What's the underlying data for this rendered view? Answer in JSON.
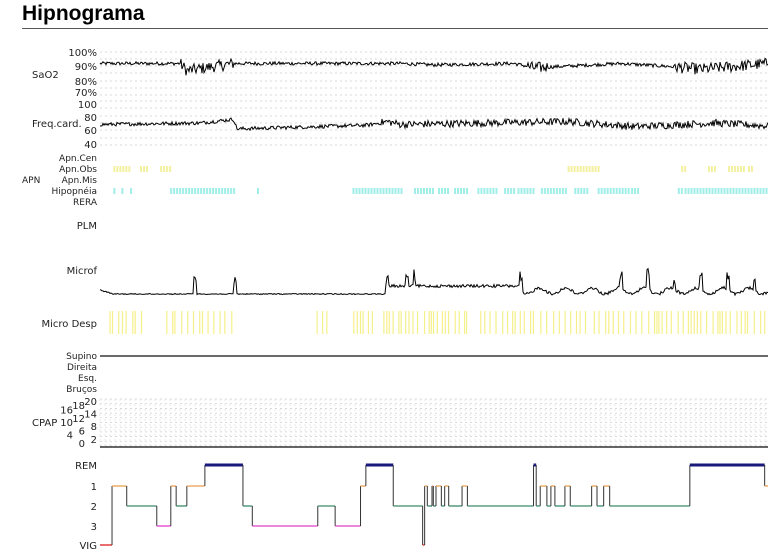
{
  "title": "Hipnograma",
  "channels": {
    "sao2": {
      "label": "SaO2",
      "ticks": [
        "100%",
        "90%",
        "80%",
        "70%"
      ],
      "range": [
        70,
        100
      ],
      "baseline": [
        [
          0,
          92
        ],
        [
          12,
          92
        ],
        [
          13,
          87
        ],
        [
          20,
          92
        ],
        [
          45,
          92
        ],
        [
          50,
          91
        ],
        [
          62,
          92
        ],
        [
          65,
          89
        ],
        [
          78,
          92
        ],
        [
          85,
          90
        ],
        [
          90,
          88
        ],
        [
          100,
          92
        ]
      ]
    },
    "hr": {
      "label": "Freq.card.",
      "ticks": [
        "100",
        "80",
        "60",
        "40"
      ],
      "range": [
        40,
        100
      ],
      "baseline": [
        [
          0,
          68
        ],
        [
          15,
          70
        ],
        [
          20,
          75
        ],
        [
          20.5,
          62
        ],
        [
          40,
          67
        ],
        [
          43,
          72
        ],
        [
          45,
          68
        ],
        [
          70,
          72
        ],
        [
          80,
          65
        ],
        [
          92,
          70
        ],
        [
          100,
          66
        ]
      ]
    },
    "apn": {
      "label": "APN",
      "rows": [
        "Apn.Cen",
        "Apn.Obs",
        "Apn.Mis",
        "Hipopnéia",
        "RERA"
      ],
      "events": {
        "Apn.Obs": [
          [
            2,
            4.5
          ],
          [
            6,
            7
          ],
          [
            9,
            10.5
          ],
          [
            70,
            74.5
          ],
          [
            87,
            87.5
          ],
          [
            91,
            92
          ],
          [
            94,
            96.5
          ],
          [
            97,
            97.5
          ]
        ],
        "Hipopnéia": [
          [
            2,
            2.3
          ],
          [
            3.2,
            3.5
          ],
          [
            4.5,
            4.8
          ],
          [
            10.5,
            20.2
          ],
          [
            23.5,
            23.8
          ],
          [
            37.8,
            45
          ],
          [
            47,
            50
          ],
          [
            50.6,
            52
          ],
          [
            53,
            55
          ],
          [
            56.5,
            59.5
          ],
          [
            60.5,
            62
          ],
          [
            62.5,
            65
          ],
          [
            66,
            70
          ],
          [
            71,
            73
          ],
          [
            74.5,
            79
          ],
          [
            79.5,
            80.5
          ],
          [
            86.5,
            87
          ],
          [
            87.5,
            100
          ]
        ]
      }
    },
    "plm": {
      "label": "PLM"
    },
    "microf": {
      "label": "Microf",
      "spikes": [
        14.2,
        20.2,
        43,
        46,
        47.1,
        63,
        78,
        82,
        86,
        90,
        94,
        98
      ]
    },
    "microdesp": {
      "label": "Micro Desp",
      "ranges": [
        [
          1.5,
          6.5
        ],
        [
          10,
          20
        ],
        [
          32.5,
          34
        ],
        [
          38,
          41
        ],
        [
          42.5,
          55
        ],
        [
          57,
          65
        ],
        [
          66,
          73
        ],
        [
          74,
          100
        ]
      ]
    },
    "position": {
      "rows": [
        "Supino",
        "Direita",
        "Esq.",
        "Bruços"
      ]
    },
    "cpap": {
      "label": "CPAP",
      "ticks": [
        "20",
        "18",
        "16",
        "14",
        "12",
        "10",
        "8",
        "6",
        "4",
        "2",
        "0"
      ]
    }
  },
  "hypnogram": {
    "stages": [
      "REM",
      "1",
      "2",
      "3",
      "VIG"
    ],
    "colors": {
      "REM": "#1a1a7a",
      "1": "#e8a050",
      "2": "#3a8a6a",
      "3": "#e040c8",
      "VIG": "#e02020"
    },
    "segments": [
      [
        0,
        1.8,
        "VIG"
      ],
      [
        1.8,
        4,
        "1"
      ],
      [
        4,
        8.5,
        "2"
      ],
      [
        8.5,
        10.6,
        "3"
      ],
      [
        10.6,
        11.4,
        "1"
      ],
      [
        11.4,
        13,
        "2"
      ],
      [
        13,
        15.7,
        "1"
      ],
      [
        15.7,
        21.4,
        "REM"
      ],
      [
        21.4,
        22.8,
        "2"
      ],
      [
        22.8,
        32.6,
        "3"
      ],
      [
        32.6,
        35.2,
        "2"
      ],
      [
        35.2,
        39,
        "3"
      ],
      [
        39,
        39.8,
        "1"
      ],
      [
        39.8,
        43.9,
        "REM"
      ],
      [
        43.9,
        48.3,
        "2"
      ],
      [
        48.3,
        48.6,
        "VIG"
      ],
      [
        48.6,
        49,
        "1"
      ],
      [
        49,
        49.7,
        "2"
      ],
      [
        49.7,
        49.9,
        "1"
      ],
      [
        49.9,
        50.3,
        "2"
      ],
      [
        50.3,
        51.1,
        "1"
      ],
      [
        51.1,
        51.6,
        "2"
      ],
      [
        51.6,
        52.2,
        "1"
      ],
      [
        52.2,
        54.2,
        "2"
      ],
      [
        54.2,
        55,
        "1"
      ],
      [
        55,
        64.9,
        "2"
      ],
      [
        64.9,
        65.3,
        "REM"
      ],
      [
        65.3,
        65.9,
        "2"
      ],
      [
        65.9,
        66.9,
        "1"
      ],
      [
        66.9,
        67.5,
        "2"
      ],
      [
        67.5,
        68.1,
        "1"
      ],
      [
        68.1,
        69.6,
        "2"
      ],
      [
        69.6,
        70.4,
        "1"
      ],
      [
        70.4,
        73.6,
        "2"
      ],
      [
        73.6,
        74.4,
        "1"
      ],
      [
        74.4,
        75.4,
        "2"
      ],
      [
        75.4,
        76.3,
        "1"
      ],
      [
        76.3,
        88.3,
        "2"
      ],
      [
        88.3,
        99.5,
        "REM"
      ],
      [
        99.5,
        100,
        "1"
      ]
    ]
  }
}
